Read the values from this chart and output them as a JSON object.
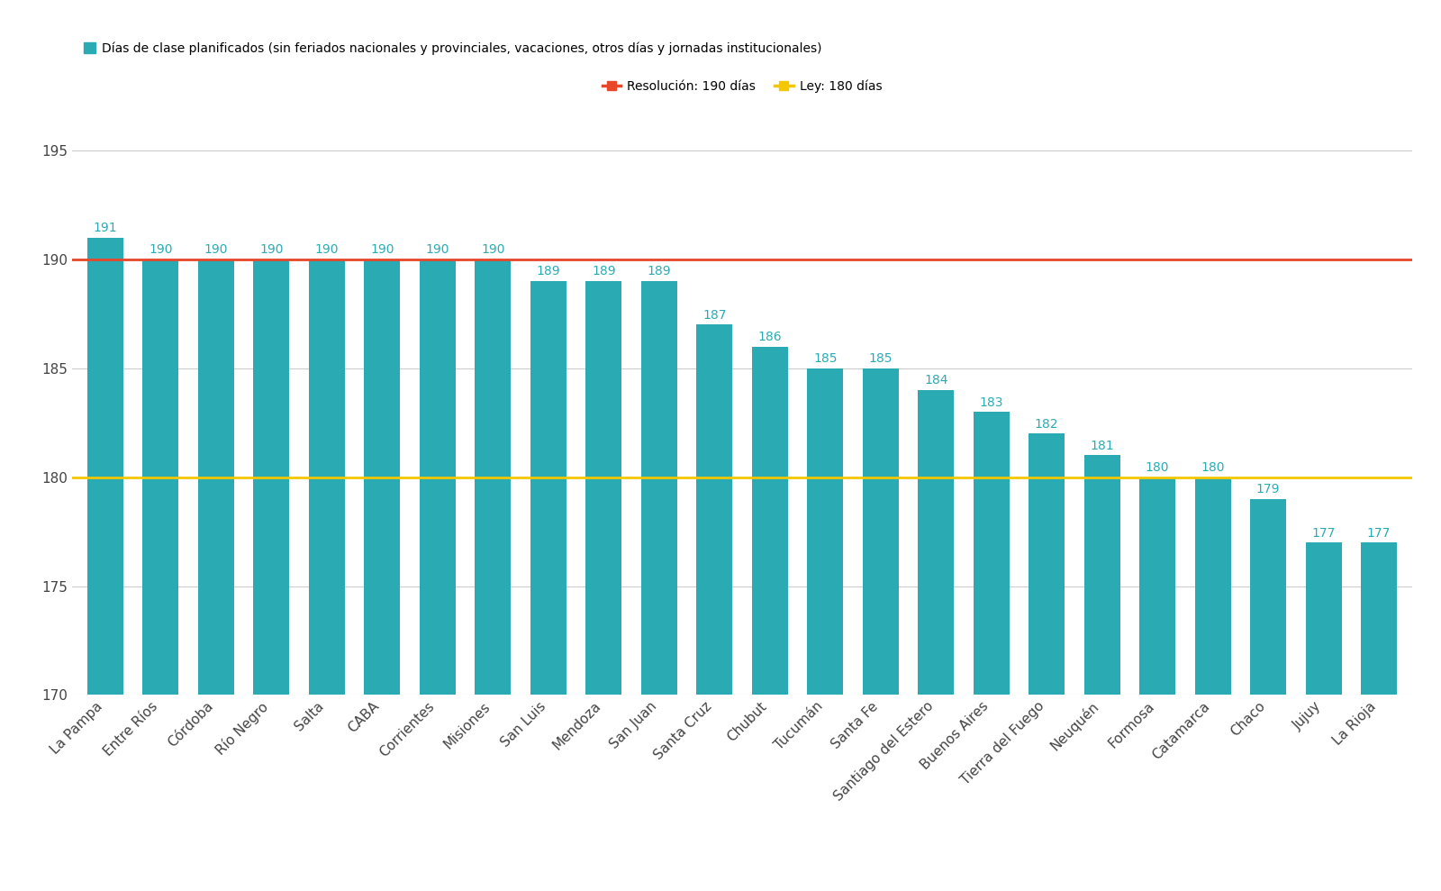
{
  "categories": [
    "La Pampa",
    "Entre Ríos",
    "Córdoba",
    "Río Negro",
    "Salta",
    "CABA",
    "Corrientes",
    "Misiones",
    "San Luis",
    "Mendoza",
    "San Juan",
    "Santa Cruz",
    "Chubut",
    "Tucumán",
    "Santa Fe",
    "Santiago del Estero",
    "Buenos Aires",
    "Tierra del Fuego",
    "Neuquén",
    "Formosa",
    "Catamarca",
    "Chaco",
    "Jujuy",
    "La Rioja"
  ],
  "values": [
    191,
    190,
    190,
    190,
    190,
    190,
    190,
    190,
    189,
    189,
    189,
    187,
    186,
    185,
    185,
    184,
    183,
    182,
    181,
    180,
    180,
    179,
    177,
    177
  ],
  "bar_color": "#2AABB3",
  "label_color": "#2AABB3",
  "resolution_line": 190,
  "ley_line": 180,
  "resolution_color": "#E8472A",
  "ley_color": "#F5C700",
  "ylim_min": 170,
  "ylim_max": 197,
  "yticks": [
    170,
    175,
    180,
    185,
    190,
    195
  ],
  "legend_bar_label": "Días de clase planificados (sin feriados nacionales y provinciales, vacaciones, otros días y jornadas institucionales)",
  "legend_resolution_label": "Resolución: 190 días",
  "legend_ley_label": "Ley: 180 días",
  "background_color": "#FFFFFF",
  "grid_color": "#CCCCCC",
  "label_fontsize": 10,
  "tick_fontsize": 11,
  "bar_width": 0.65
}
